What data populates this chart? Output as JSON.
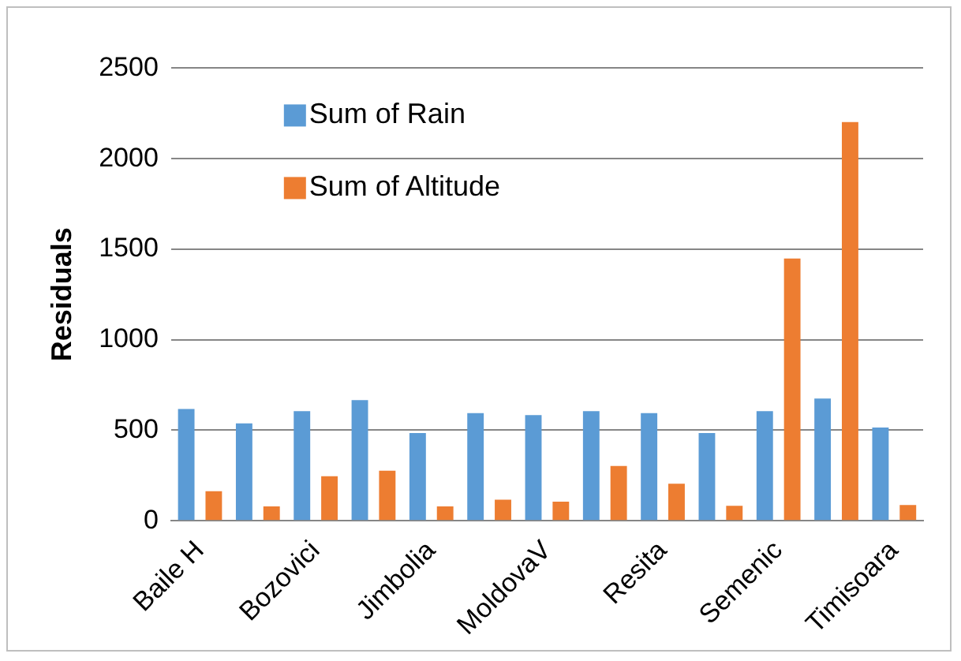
{
  "chart_data": {
    "type": "bar",
    "ylabel": "Residuals",
    "categories": [
      "Baile H",
      null,
      "Bozovici",
      null,
      "Jimbolia",
      null,
      "MoldovaV",
      null,
      "Resita",
      null,
      "Semenic",
      null,
      "Timisoara"
    ],
    "series": [
      {
        "name": "Sum of Rain",
        "color": "#5b9bd5",
        "values": [
          618,
          538,
          606,
          667,
          485,
          595,
          584,
          606,
          595,
          485,
          606,
          675,
          515
        ]
      },
      {
        "name": "Sum of Altitude",
        "color": "#ed7d31",
        "values": [
          163,
          80,
          246,
          277,
          80,
          117,
          106,
          303,
          205,
          83,
          1448,
          2202,
          87
        ]
      }
    ],
    "ylim": [
      0,
      2500
    ],
    "yticks": [
      0,
      500,
      1000,
      1500,
      2000,
      2500
    ],
    "grid": "y",
    "legend": "top left"
  }
}
